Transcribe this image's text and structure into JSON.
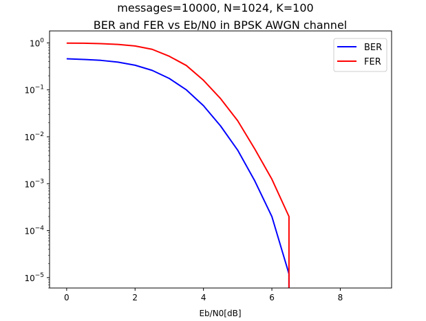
{
  "chart_data": {
    "type": "line",
    "title": "messages=10000, N=1024, K=100",
    "subtitle": "BER and FER vs Eb/N0 in BPSK AWGN channel",
    "xlabel": "Eb/N0[dB]",
    "ylabel": "",
    "x_scale": "linear",
    "y_scale": "log",
    "xlim": [
      -0.5,
      9.5
    ],
    "ylim": [
      6e-06,
      1.8
    ],
    "x_ticks": [
      0,
      2,
      4,
      6,
      8
    ],
    "x_tick_labels": [
      "0",
      "2",
      "4",
      "6",
      "8"
    ],
    "y_ticks": [
      1e-05,
      0.0001,
      0.001,
      0.01,
      0.1,
      1
    ],
    "y_tick_labels": [
      {
        "base": "10",
        "exp": "−5"
      },
      {
        "base": "10",
        "exp": "−4"
      },
      {
        "base": "10",
        "exp": "−3"
      },
      {
        "base": "10",
        "exp": "−2"
      },
      {
        "base": "10",
        "exp": "−1"
      },
      {
        "base": "10",
        "exp": "0"
      }
    ],
    "grid": false,
    "legend_position": "top-right",
    "series": [
      {
        "name": "BER",
        "color": "#0000ff",
        "x": [
          0,
          0.5,
          1.0,
          1.5,
          2.0,
          2.5,
          3.0,
          3.5,
          4.0,
          4.5,
          5.0,
          5.5,
          6.0,
          6.5,
          6.5
        ],
        "y": [
          0.46,
          0.445,
          0.425,
          0.39,
          0.335,
          0.26,
          0.175,
          0.1,
          0.046,
          0.017,
          0.0052,
          0.00115,
          0.0002,
          1.2e-05,
          1e-06
        ]
      },
      {
        "name": "FER",
        "color": "#ff0000",
        "x": [
          0,
          0.5,
          1.0,
          1.5,
          2.0,
          2.5,
          3.0,
          3.5,
          4.0,
          4.5,
          5.0,
          5.5,
          6.0,
          6.5,
          6.5
        ],
        "y": [
          0.99,
          0.985,
          0.965,
          0.93,
          0.86,
          0.73,
          0.52,
          0.33,
          0.16,
          0.065,
          0.022,
          0.0055,
          0.00125,
          0.0002,
          1e-06
        ]
      }
    ]
  }
}
